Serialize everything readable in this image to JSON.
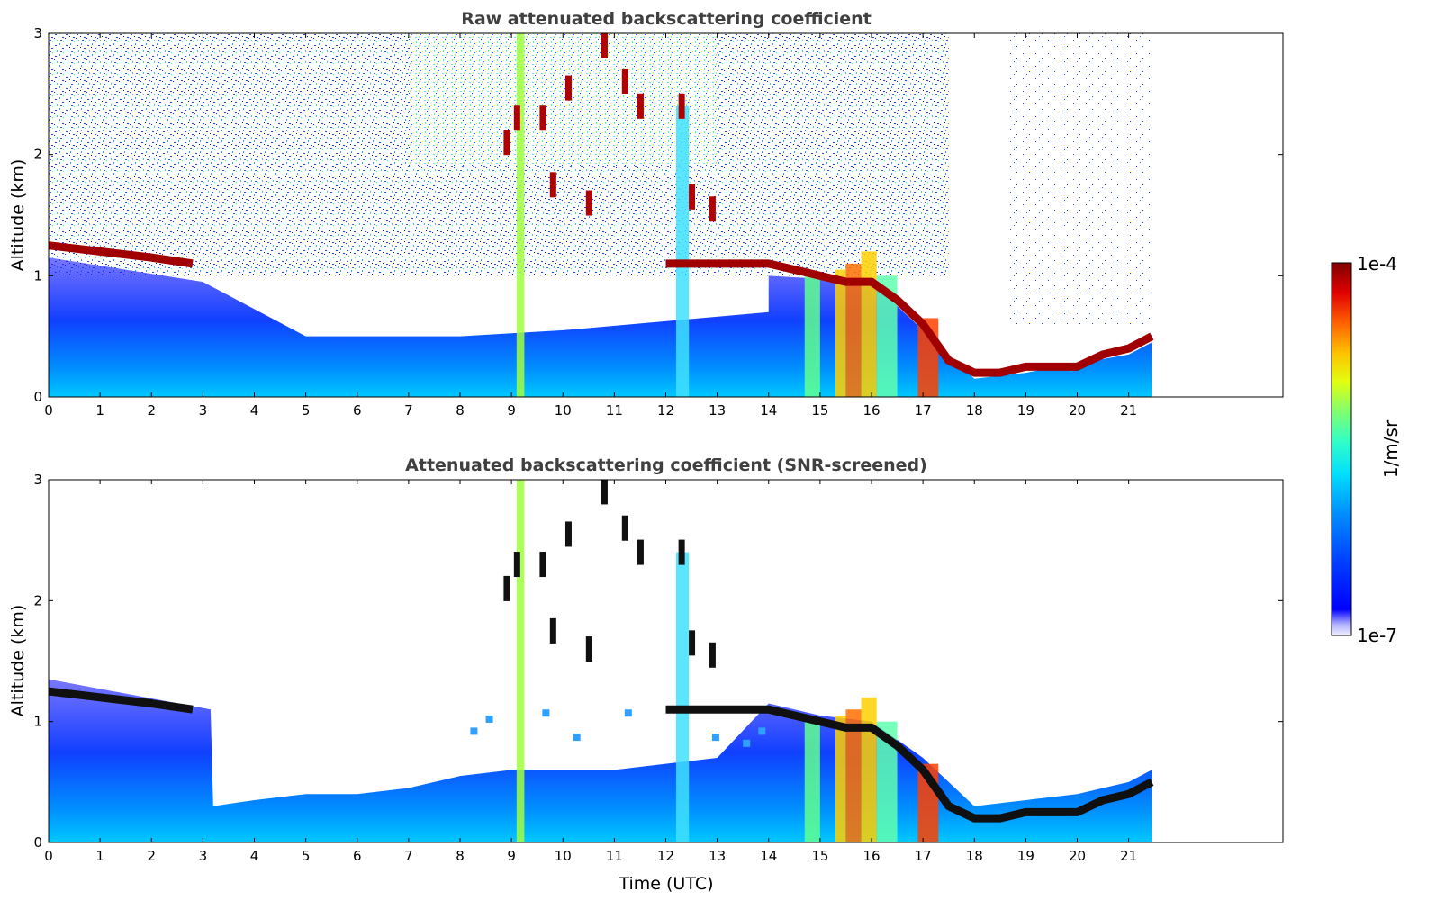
{
  "chart_data": [
    {
      "type": "heatmap",
      "title": "Raw attenuated backscattering coefficient",
      "xlabel": "",
      "ylabel": "Altitude (km)",
      "xlim": [
        0,
        24
      ],
      "ylim": [
        0,
        3
      ],
      "xticks": [
        "0",
        "1",
        "2",
        "3",
        "4",
        "5",
        "6",
        "7",
        "8",
        "9",
        "10",
        "11",
        "12",
        "13",
        "14",
        "15",
        "16",
        "17",
        "18",
        "19",
        "20",
        "21"
      ],
      "yticks": [
        "0",
        "1",
        "2",
        "3"
      ],
      "data_extent_hours": 21.45,
      "cloud_layer": {
        "time": [
          0,
          1,
          2,
          2.8,
          12,
          12.5,
          14,
          15,
          15.5,
          16,
          16.5,
          17,
          17.5,
          18,
          18.5,
          19,
          19.5,
          20,
          20.5,
          21,
          21.45
        ],
        "altitude": [
          1.25,
          1.2,
          1.15,
          1.1,
          1.1,
          1.1,
          1.1,
          1.0,
          0.95,
          0.95,
          0.8,
          0.6,
          0.3,
          0.2,
          0.2,
          0.25,
          0.25,
          0.25,
          0.35,
          0.4,
          0.5
        ]
      },
      "high_cloud_fragments": [
        {
          "t": 8.9,
          "alt": 2.1
        },
        {
          "t": 9.1,
          "alt": 2.3
        },
        {
          "t": 9.6,
          "alt": 2.3
        },
        {
          "t": 9.8,
          "alt": 1.75
        },
        {
          "t": 10.1,
          "alt": 2.55
        },
        {
          "t": 10.5,
          "alt": 1.6
        },
        {
          "t": 10.8,
          "alt": 2.9
        },
        {
          "t": 11.2,
          "alt": 2.6
        },
        {
          "t": 11.5,
          "alt": 2.4
        },
        {
          "t": 12.3,
          "alt": 2.4
        },
        {
          "t": 12.5,
          "alt": 1.65
        },
        {
          "t": 12.9,
          "alt": 1.55
        }
      ],
      "colorbar": {
        "min": "1e-7",
        "max": "1e-4",
        "label": "1/m/sr",
        "scale": "log"
      },
      "grid": false
    },
    {
      "type": "heatmap",
      "title": "Attenuated backscattering coefficient (SNR-screened)",
      "xlabel": "Time (UTC)",
      "ylabel": "Altitude (km)",
      "xlim": [
        0,
        24
      ],
      "ylim": [
        0,
        3
      ],
      "xticks": [
        "0",
        "1",
        "2",
        "3",
        "4",
        "5",
        "6",
        "7",
        "8",
        "9",
        "10",
        "11",
        "12",
        "13",
        "14",
        "15",
        "16",
        "17",
        "18",
        "19",
        "20",
        "21"
      ],
      "yticks": [
        "0",
        "1",
        "2",
        "3"
      ],
      "data_extent_hours": 21.45,
      "signal_top": {
        "time": [
          0,
          3.15,
          3.2,
          4,
          5,
          6,
          7,
          8,
          9,
          10,
          11,
          12,
          13,
          14,
          15,
          16,
          17,
          18,
          19,
          20,
          21,
          21.45
        ],
        "altitude": [
          1.35,
          1.1,
          0.3,
          0.35,
          0.4,
          0.4,
          0.45,
          0.55,
          0.6,
          0.6,
          0.6,
          0.65,
          0.7,
          1.15,
          1.05,
          1.0,
          0.7,
          0.3,
          0.35,
          0.4,
          0.5,
          0.6
        ]
      },
      "colorbar": {
        "min": "1e-7",
        "max": "1e-4",
        "label": "1/m/sr",
        "scale": "log"
      },
      "grid": false
    }
  ],
  "colorbar": {
    "top_label": "1e-4",
    "bottom_label": "1e-7",
    "label": "1/m/sr"
  }
}
